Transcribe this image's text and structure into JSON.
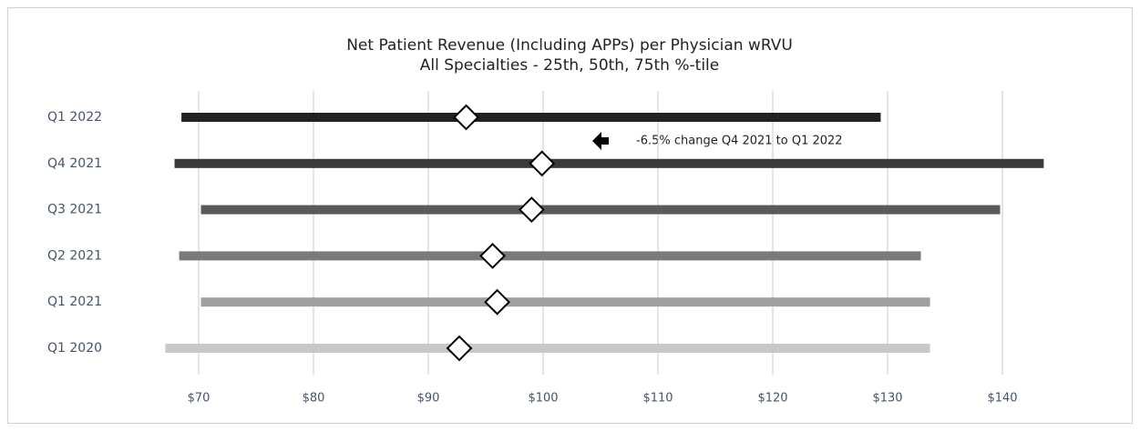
{
  "chart_data": {
    "type": "range",
    "title": "Net Patient Revenue (Including APPs) per Physician wRVU",
    "subtitle": "All Specialties - 25th, 50th, 75th %-tile",
    "categories": [
      "Q1 2022",
      "Q4 2021",
      "Q3 2021",
      "Q2 2021",
      "Q1 2021",
      "Q1 2020"
    ],
    "low": [
      68.5,
      67.9,
      70.2,
      68.3,
      70.2,
      67.1
    ],
    "median": [
      93.3,
      99.9,
      99.0,
      95.6,
      96.0,
      92.7
    ],
    "high": [
      129.4,
      143.6,
      139.8,
      132.9,
      133.7,
      133.7
    ],
    "colors": [
      "#222222",
      "#3a3a3a",
      "#5a5a5a",
      "#7a7a7a",
      "#a0a0a0",
      "#c8c8c8"
    ],
    "xlim": [
      65,
      145
    ],
    "xticks": [
      {
        "value": 70,
        "label": "$70"
      },
      {
        "value": 80,
        "label": "$80"
      },
      {
        "value": 90,
        "label": "$90"
      },
      {
        "value": 100,
        "label": "$100"
      },
      {
        "value": 110,
        "label": "$110"
      },
      {
        "value": 120,
        "label": "$120"
      },
      {
        "value": 130,
        "label": "$130"
      },
      {
        "value": 140,
        "label": "$140"
      }
    ],
    "grid": true,
    "annotation": "-6.5% change Q4 2021 to Q1 2022"
  }
}
